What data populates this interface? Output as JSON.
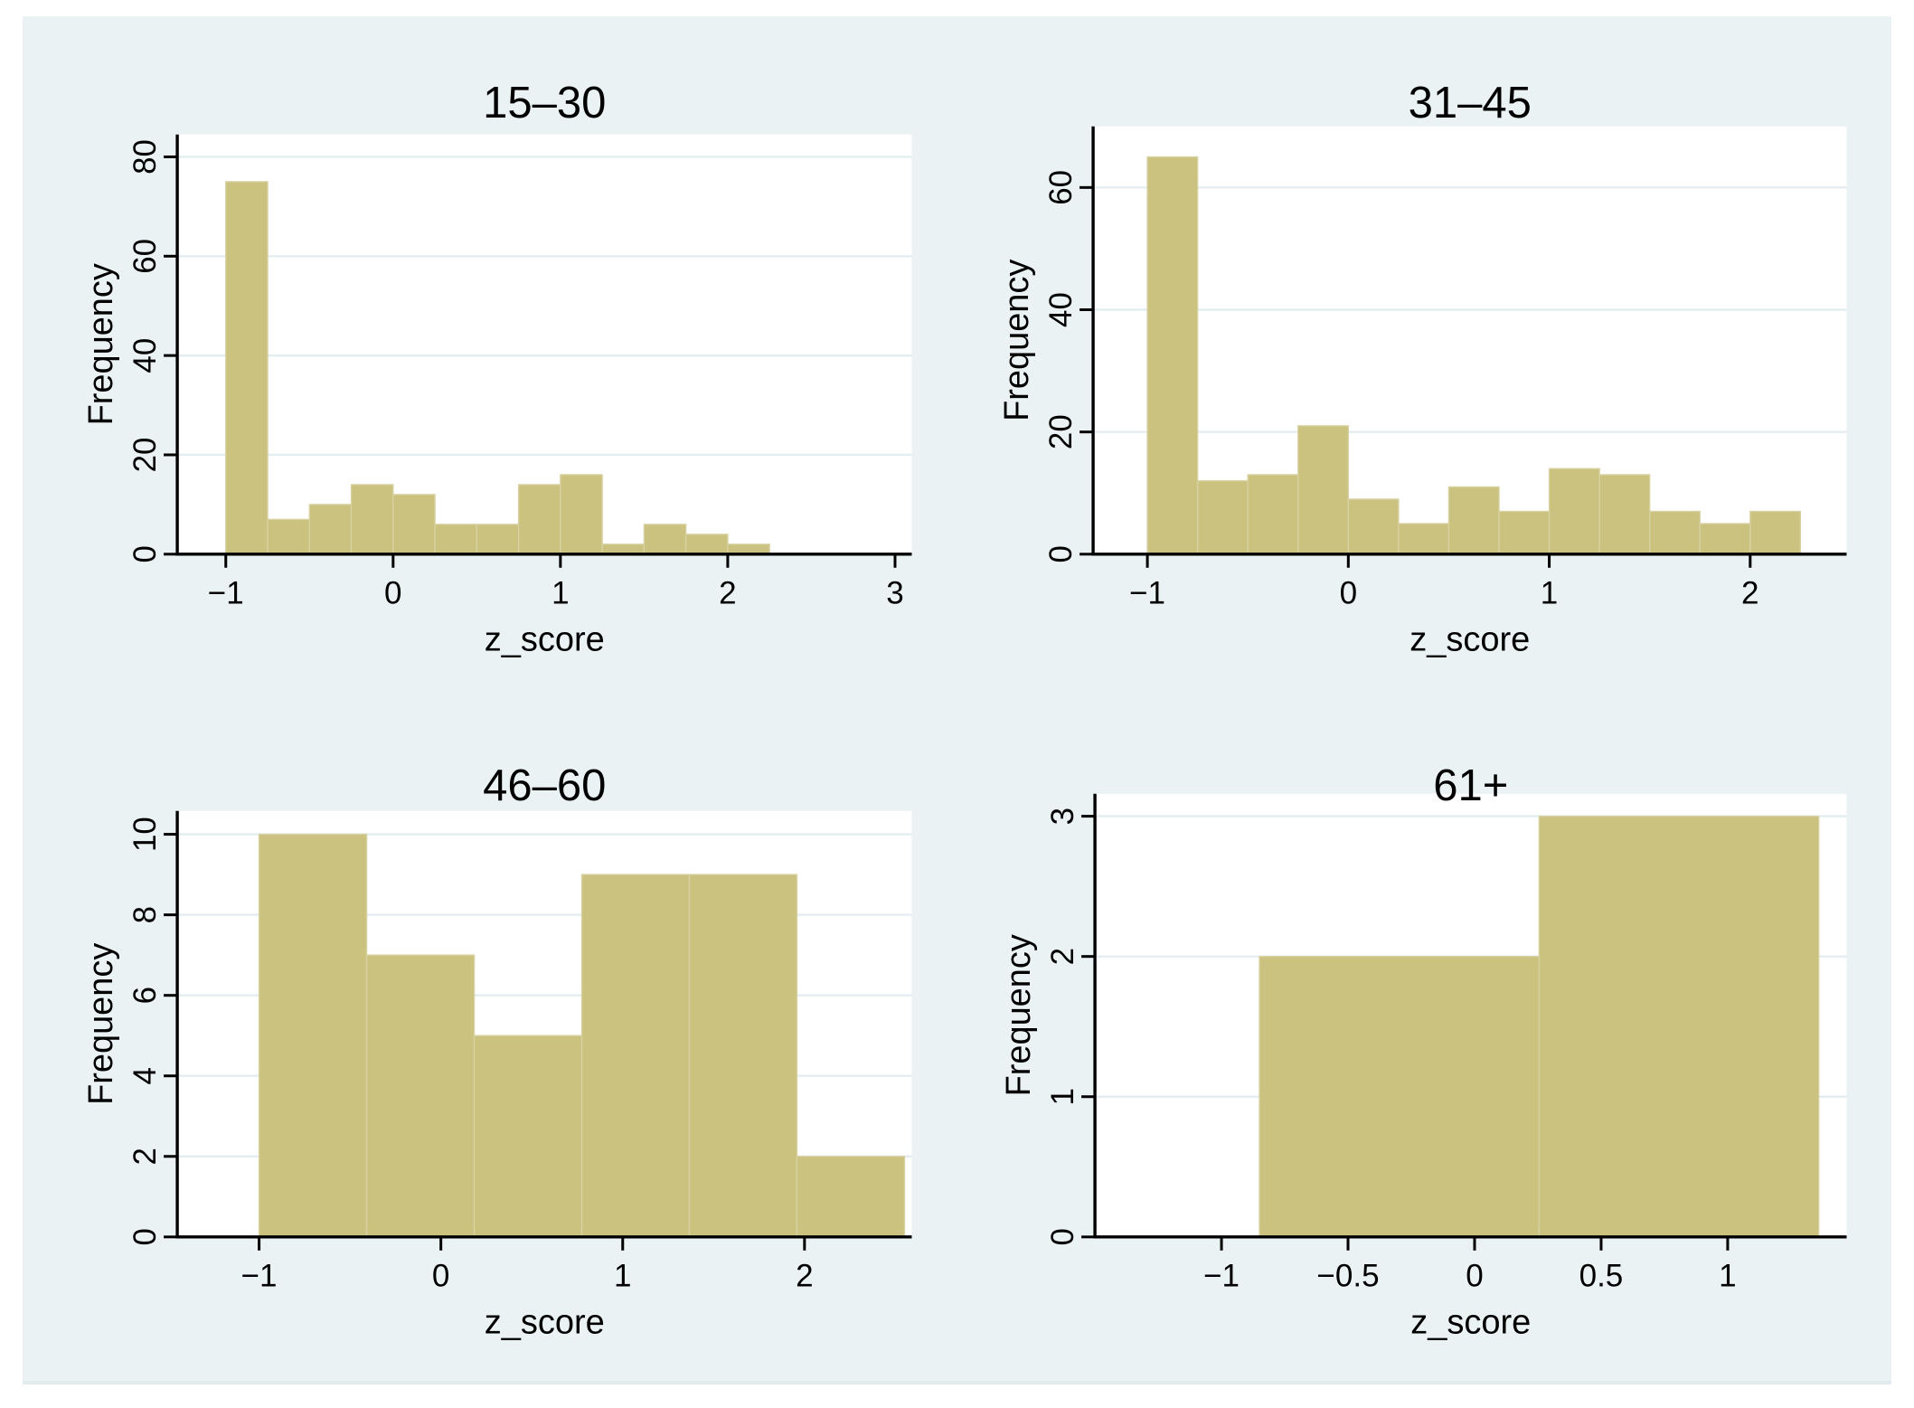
{
  "window": {
    "description": "Stata graph window with four histogram panels by age group",
    "background": "#ffffff",
    "graph_background": "#eaf2f3"
  },
  "colors": {
    "plot_background": "#ffffff",
    "gridline": "#e4eef1",
    "axis": "#000000",
    "title": "#232f5c",
    "bar_fill": "#cac27e",
    "bar_outline": "#d8d1a2"
  },
  "chart_data": [
    {
      "type": "bar",
      "subtype": "histogram",
      "title": "15–30",
      "xlabel": "z_score",
      "ylabel": "Frequency",
      "bin_start": -1,
      "bin_width": 0.25,
      "values": [
        75,
        7,
        10,
        14,
        12,
        6,
        6,
        14,
        16,
        2,
        6,
        4,
        2
      ],
      "x_ticks": [
        -1,
        0,
        1,
        2,
        3
      ],
      "x_tick_labels": [
        "−1",
        "0",
        "1",
        "2",
        "3"
      ],
      "y_ticks": [
        0,
        20,
        40,
        60,
        80
      ],
      "y_tick_labels": [
        "0",
        "20",
        "40",
        "60",
        "80"
      ],
      "xlim": [
        -1.29,
        3.1
      ],
      "ylim": [
        0,
        84.5
      ],
      "grid": "horizontal-only",
      "legend": "none"
    },
    {
      "type": "bar",
      "subtype": "histogram",
      "title": "31–45",
      "xlabel": "z_score",
      "ylabel": "Frequency",
      "bin_start": -1,
      "bin_width": 0.25,
      "values": [
        65,
        12,
        13,
        21,
        9,
        5,
        11,
        7,
        14,
        13,
        7,
        5,
        7
      ],
      "x_ticks": [
        -1,
        0,
        1,
        2
      ],
      "x_tick_labels": [
        "−1",
        "0",
        "1",
        "2"
      ],
      "y_ticks": [
        0,
        20,
        40,
        60
      ],
      "y_tick_labels": [
        "0",
        "20",
        "40",
        "60"
      ],
      "xlim": [
        -1.27,
        2.48
      ],
      "ylim": [
        0,
        70
      ],
      "grid": "horizontal-only",
      "legend": "none"
    },
    {
      "type": "bar",
      "subtype": "histogram",
      "title": "46–60",
      "xlabel": "z_score",
      "ylabel": "Frequency",
      "bin_start": -1,
      "bin_width": 0.5917,
      "values": [
        10,
        7,
        5,
        9,
        9,
        2
      ],
      "x_ticks": [
        -1,
        0,
        1,
        2
      ],
      "x_tick_labels": [
        "−1",
        "0",
        "1",
        "2"
      ],
      "y_ticks": [
        0,
        2,
        4,
        6,
        8,
        10
      ],
      "y_tick_labels": [
        "0",
        "2",
        "4",
        "6",
        "8",
        "10"
      ],
      "xlim": [
        -1.45,
        2.59
      ],
      "ylim": [
        0,
        10.58
      ],
      "grid": "horizontal-only",
      "legend": "none"
    },
    {
      "type": "bar",
      "subtype": "histogram",
      "title": "61+",
      "xlabel": "z_score",
      "ylabel": "Frequency",
      "bin_start": -0.85,
      "bin_width": 1.105,
      "values": [
        2,
        3
      ],
      "x_ticks": [
        -1,
        -0.5,
        0,
        0.5,
        1
      ],
      "x_tick_labels": [
        "−1",
        "−0.5",
        "0",
        "0.5",
        "1"
      ],
      "y_ticks": [
        0,
        1,
        2,
        3
      ],
      "y_tick_labels": [
        "0",
        "1",
        "2",
        "3"
      ],
      "xlim": [
        -1.5,
        1.47
      ],
      "ylim": [
        0,
        3.16
      ],
      "grid": "horizontal-only",
      "legend": "none"
    }
  ]
}
